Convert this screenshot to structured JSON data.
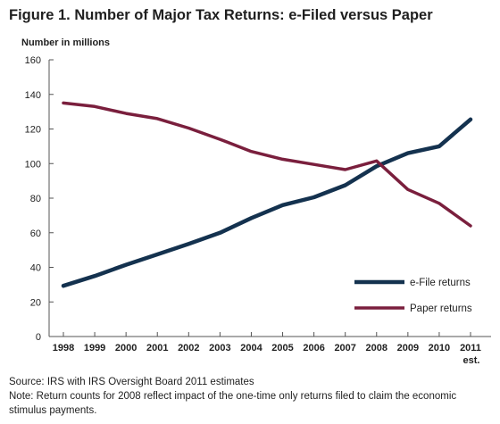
{
  "chart_data": {
    "type": "line",
    "title": "Figure 1. Number of Major Tax Returns: e-Filed versus Paper",
    "ylabel": "Number in millions",
    "xlabel": "",
    "x": [
      "1998",
      "1999",
      "2000",
      "2001",
      "2002",
      "2003",
      "2004",
      "2005",
      "2006",
      "2007",
      "2008",
      "2009",
      "2010",
      "2011"
    ],
    "x_sublabels": {
      "2011": "est."
    },
    "ylim": [
      0,
      160
    ],
    "yticks": [
      0,
      20,
      40,
      60,
      80,
      100,
      120,
      140,
      160
    ],
    "grid": false,
    "legend_position": "bottom-right",
    "series": [
      {
        "name": "e-File returns",
        "color": "#14324f",
        "values": [
          29.3,
          35,
          41.5,
          47.5,
          53.5,
          60,
          68.5,
          76,
          80.5,
          87.5,
          98.5,
          106,
          110,
          125.5
        ]
      },
      {
        "name": "Paper returns",
        "color": "#7a1f3d",
        "values": [
          135,
          133,
          129,
          126,
          120.5,
          114,
          107,
          102.5,
          99.5,
          96.5,
          101.5,
          85,
          77,
          64
        ]
      }
    ]
  },
  "notes": {
    "source": "Source: IRS with IRS Oversight Board 2011 estimates",
    "note": "Note: Return counts for 2008 reflect impact of the one-time only returns filed to claim the economic stimulus payments."
  }
}
